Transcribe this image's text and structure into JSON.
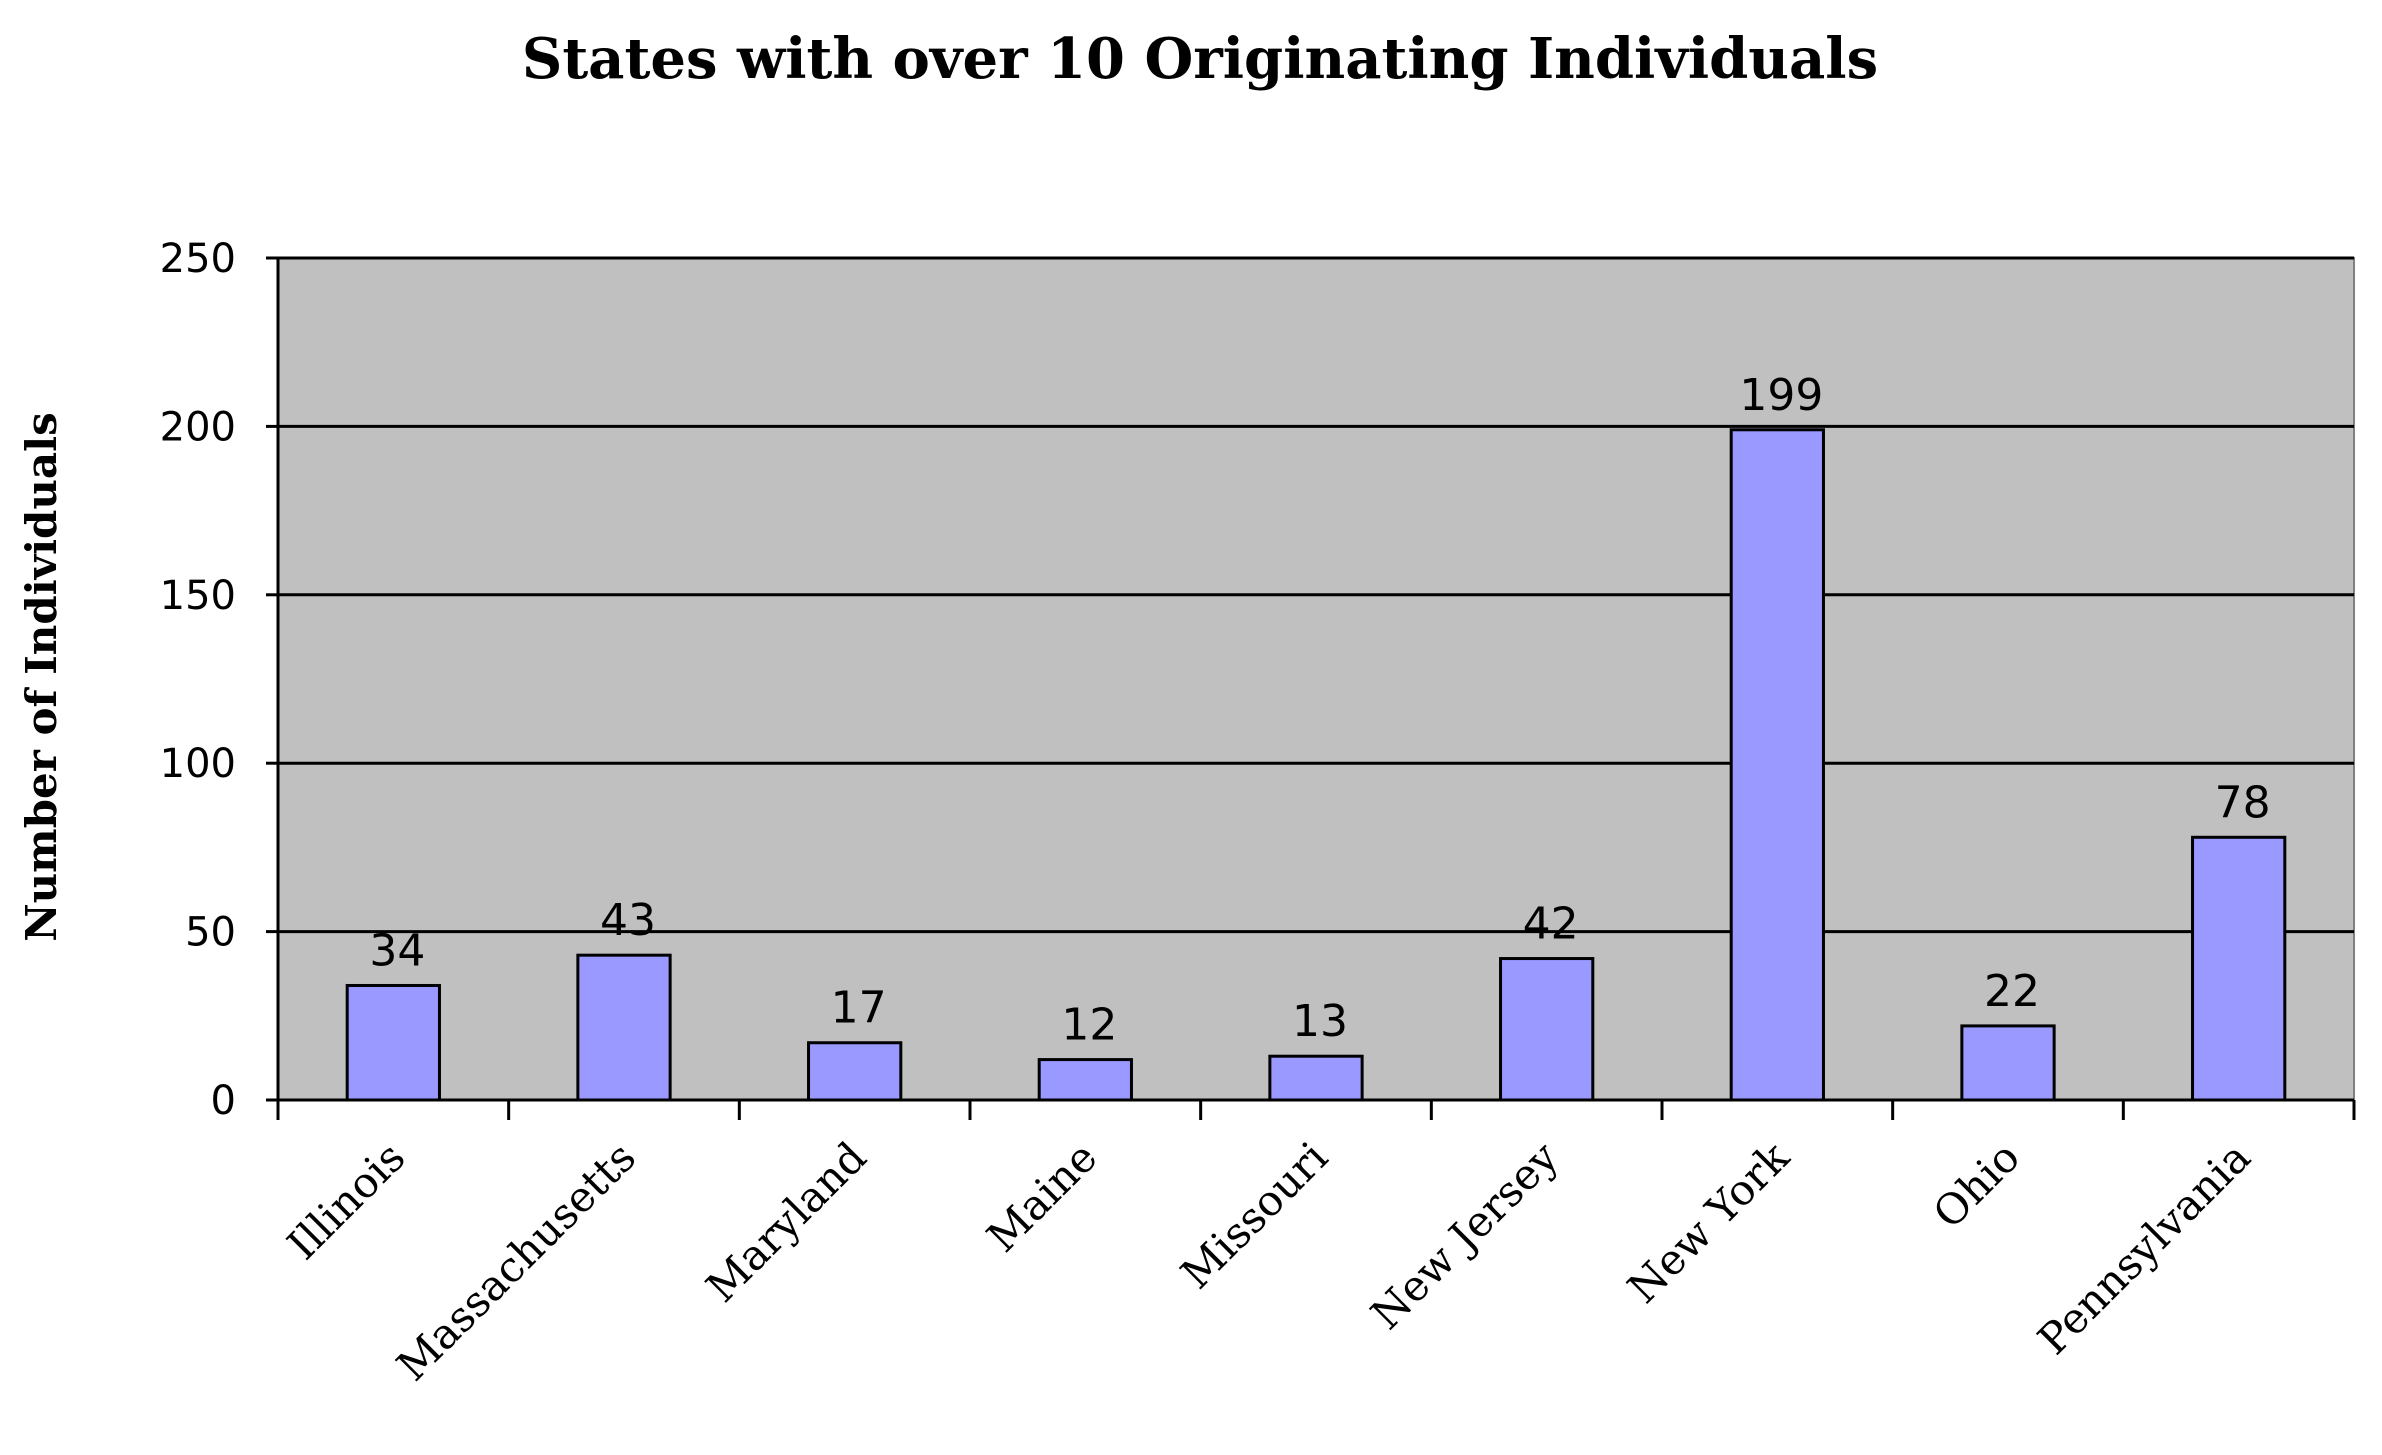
{
  "chart_data": {
    "type": "bar",
    "title": "States with over 10 Originating Individuals",
    "xlabel": "",
    "ylabel": "Number of Individuals",
    "categories": [
      "Illinois",
      "Massachusetts",
      "Maryland",
      "Maine",
      "Missouri",
      "New Jersey",
      "New York",
      "Ohio",
      "Pennsylvania"
    ],
    "values": [
      34,
      43,
      17,
      12,
      13,
      42,
      199,
      22,
      78
    ],
    "data_labels": [
      "34",
      "43",
      "17",
      "12",
      "13",
      "42",
      "199",
      "22",
      "78"
    ],
    "ylim": [
      0,
      250
    ],
    "yticks": [
      0,
      50,
      100,
      150,
      200,
      250
    ],
    "ytick_labels": [
      "0",
      "50",
      "100",
      "150",
      "200",
      "250"
    ],
    "grid": true,
    "legend": "none",
    "colors": {
      "bar_fill": "#9999ff",
      "bar_stroke": "#000000",
      "plot_background": "#c0c0c0",
      "gridline": "#000000"
    }
  }
}
